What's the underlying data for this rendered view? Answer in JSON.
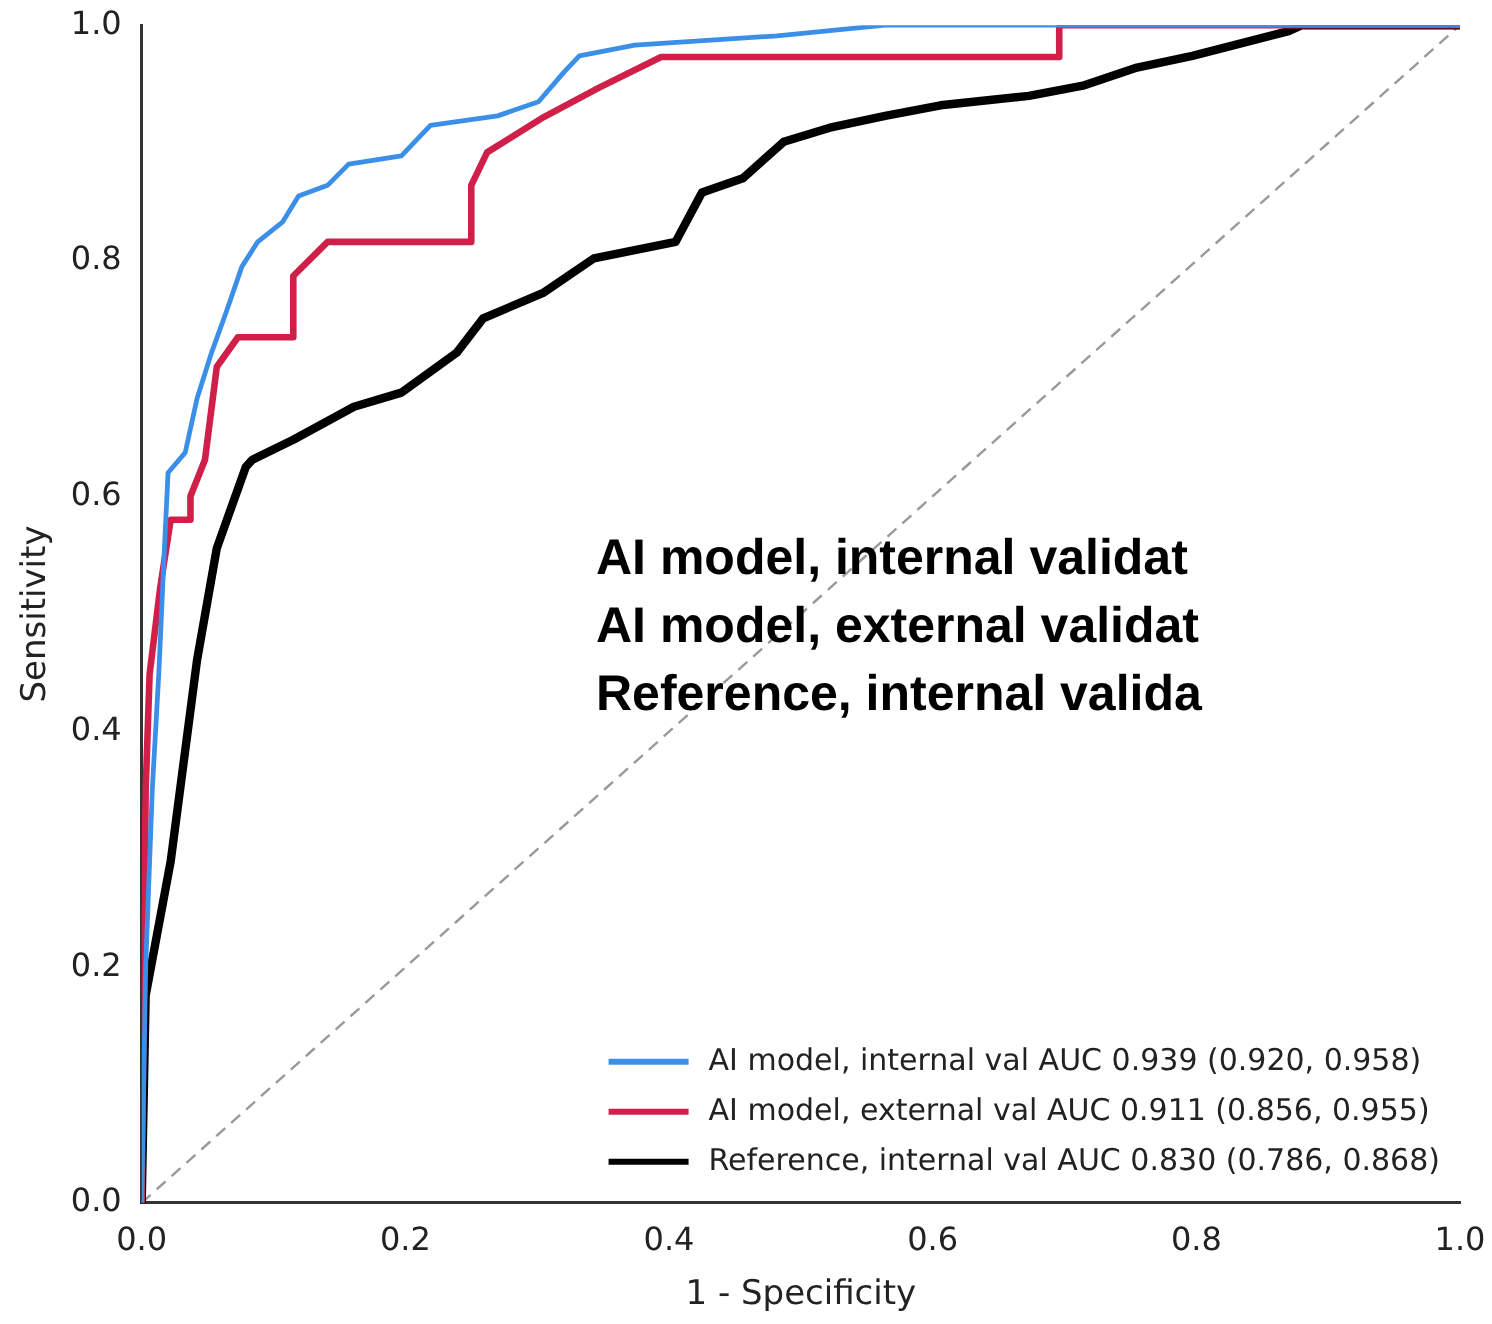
{
  "chart_data": {
    "type": "line",
    "xlabel": "1 - Specificity",
    "ylabel": "Sensitivity",
    "xlim": [
      0,
      1
    ],
    "ylim": [
      0,
      1
    ],
    "xticks": [
      {
        "value": 0,
        "label": "0.0"
      },
      {
        "value": 0.2,
        "label": "0.2"
      },
      {
        "value": 0.4,
        "label": "0.4"
      },
      {
        "value": 0.6,
        "label": "0.6"
      },
      {
        "value": 0.8,
        "label": "0.8"
      },
      {
        "value": 1,
        "label": "1.0"
      }
    ],
    "yticks": [
      {
        "value": 0,
        "label": "0.0"
      },
      {
        "value": 0.2,
        "label": "0.2"
      },
      {
        "value": 0.4,
        "label": "0.4"
      },
      {
        "value": 0.6,
        "label": "0.6"
      },
      {
        "value": 0.8,
        "label": "0.8"
      },
      {
        "value": 1,
        "label": "1.0"
      }
    ],
    "grid": false,
    "legend": "bottom right",
    "marker": "none",
    "series": [
      {
        "name": "AI model, internal val AUC 0.939 (0.920, 0.958)",
        "color": "#3b8fe8",
        "x": [
          0,
          0.003,
          0.008,
          0.013,
          0.017,
          0.02,
          0.033,
          0.042,
          0.053,
          0.064,
          0.076,
          0.088,
          0.107,
          0.119,
          0.141,
          0.157,
          0.197,
          0.219,
          0.27,
          0.301,
          0.321,
          0.332,
          0.374,
          0.482,
          0.564,
          1
        ],
        "values": [
          0,
          0.2,
          0.35,
          0.45,
          0.55,
          0.62,
          0.637,
          0.683,
          0.722,
          0.756,
          0.795,
          0.816,
          0.833,
          0.855,
          0.864,
          0.882,
          0.889,
          0.915,
          0.923,
          0.935,
          0.961,
          0.974,
          0.983,
          0.991,
          1,
          1
        ]
      },
      {
        "name": "AI model, external val AUC 0.911 (0.856, 0.955)",
        "color": "#d0204a",
        "x": [
          0,
          0.003,
          0.006,
          0.014,
          0.022,
          0.037,
          0.037,
          0.048,
          0.057,
          0.073,
          0.115,
          0.115,
          0.141,
          0.25,
          0.25,
          0.262,
          0.305,
          0.347,
          0.394,
          0.696,
          0.696,
          1
        ],
        "values": [
          0,
          0.35,
          0.449,
          0.522,
          0.58,
          0.58,
          0.6,
          0.631,
          0.71,
          0.735,
          0.735,
          0.787,
          0.816,
          0.816,
          0.864,
          0.892,
          0.922,
          0.947,
          0.973,
          0.973,
          1,
          1
        ]
      },
      {
        "name": "Reference, internal val AUC 0.830 (0.786, 0.868)",
        "color": "#000000",
        "x": [
          0,
          0.003,
          0.022,
          0.042,
          0.057,
          0.079,
          0.084,
          0.115,
          0.161,
          0.197,
          0.239,
          0.259,
          0.305,
          0.343,
          0.405,
          0.425,
          0.456,
          0.487,
          0.522,
          0.564,
          0.606,
          0.673,
          0.715,
          0.755,
          0.797,
          0.839,
          0.87,
          0.88,
          1
        ],
        "values": [
          0,
          0.176,
          0.29,
          0.461,
          0.556,
          0.625,
          0.631,
          0.648,
          0.676,
          0.688,
          0.722,
          0.751,
          0.773,
          0.802,
          0.816,
          0.858,
          0.87,
          0.901,
          0.913,
          0.923,
          0.932,
          0.94,
          0.949,
          0.964,
          0.974,
          0.986,
          0.995,
          1,
          1
        ]
      },
      {
        "color": "#999999",
        "line_style": "dashed",
        "x": [
          0,
          1
        ],
        "values": [
          0,
          1
        ]
      }
    ],
    "annotations": [
      "AI model, internal validat",
      "AI model, external validat",
      "Reference, internal valida"
    ]
  }
}
